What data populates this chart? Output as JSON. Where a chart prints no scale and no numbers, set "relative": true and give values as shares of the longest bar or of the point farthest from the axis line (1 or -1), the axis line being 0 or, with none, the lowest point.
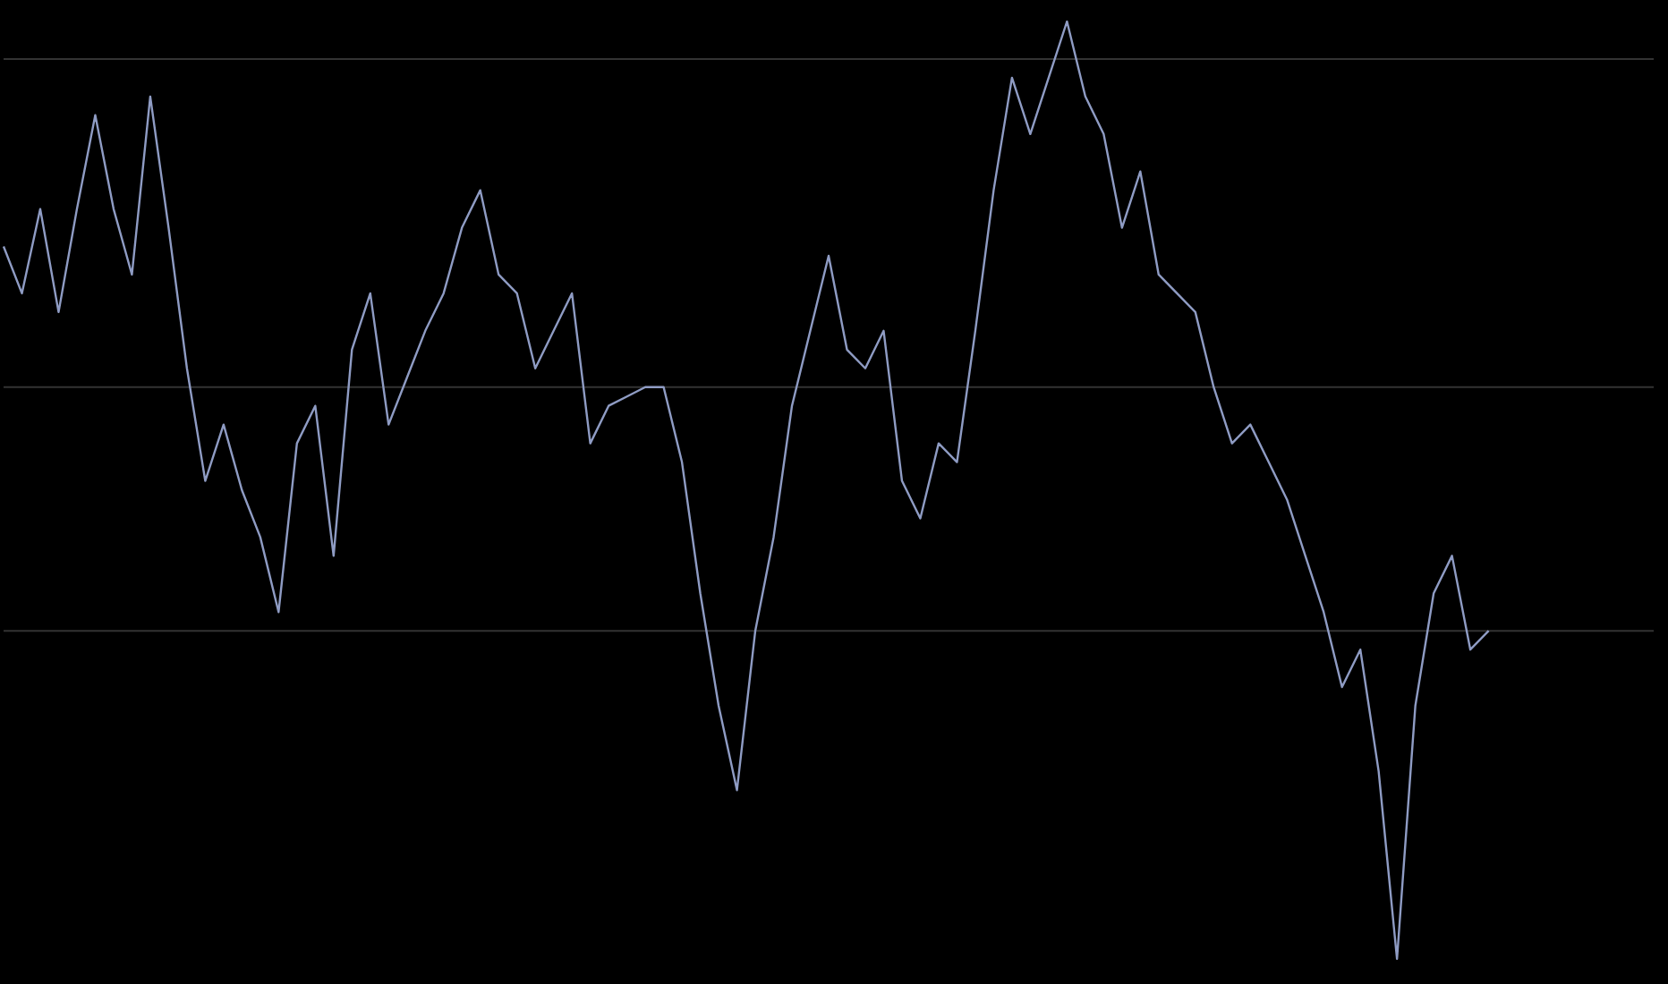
{
  "chart_data": {
    "type": "line",
    "relative": true,
    "legend": false,
    "marker": "none",
    "line_style": "solid",
    "categories": [
      null,
      null,
      null,
      null,
      null,
      null,
      null,
      null,
      null,
      null,
      null,
      null,
      null,
      null,
      null,
      null,
      null,
      null,
      null,
      null,
      null,
      null,
      null,
      null,
      null,
      null,
      null,
      null,
      null,
      null,
      null,
      null,
      null,
      null,
      null,
      null,
      null,
      null,
      null,
      null,
      null,
      null,
      null,
      null,
      null,
      null,
      null,
      null,
      null,
      null,
      null,
      null,
      null,
      null,
      null,
      null,
      null,
      null,
      null,
      null,
      null,
      null,
      null,
      null,
      null,
      null,
      null,
      null,
      null,
      null,
      null,
      null,
      null,
      null,
      null,
      null,
      null,
      null,
      null,
      null,
      null,
      null,
      null,
      null,
      null,
      null,
      null,
      null,
      null,
      null,
      null
    ],
    "ref_lines": [
      {
        "axis": "y",
        "value": 0.96,
        "color": "#333333"
      },
      {
        "axis": "y",
        "value": 0.61,
        "color": "#333333"
      },
      {
        "axis": "y",
        "value": 0.35,
        "color": "#333333"
      }
    ],
    "series": [
      {
        "color": "#8f9cc4",
        "values": [
          0.76,
          0.71,
          0.8,
          0.69,
          0.8,
          0.9,
          0.8,
          0.73,
          0.92,
          0.78,
          0.63,
          0.51,
          0.57,
          0.5,
          0.45,
          0.37,
          0.55,
          0.59,
          0.43,
          0.65,
          0.71,
          0.57,
          0.62,
          0.67,
          0.71,
          0.78,
          0.82,
          0.73,
          0.71,
          0.63,
          0.67,
          0.71,
          0.55,
          0.59,
          0.6,
          0.61,
          0.61,
          0.53,
          0.39,
          0.27,
          0.18,
          0.35,
          0.45,
          0.59,
          0.67,
          0.75,
          0.65,
          0.63,
          0.67,
          0.51,
          0.47,
          0.55,
          0.53,
          0.67,
          0.82,
          0.94,
          0.88,
          0.94,
          1.0,
          0.92,
          0.88,
          0.78,
          0.84,
          0.73,
          0.71,
          0.69,
          0.61,
          0.55,
          0.57,
          0.53,
          0.49,
          0.43,
          0.37,
          0.29,
          0.33,
          0.2,
          0,
          0.27,
          0.39,
          0.43,
          0.33,
          0.35,
          null,
          null,
          null,
          null,
          null,
          null,
          null,
          null,
          null
        ]
      }
    ]
  }
}
